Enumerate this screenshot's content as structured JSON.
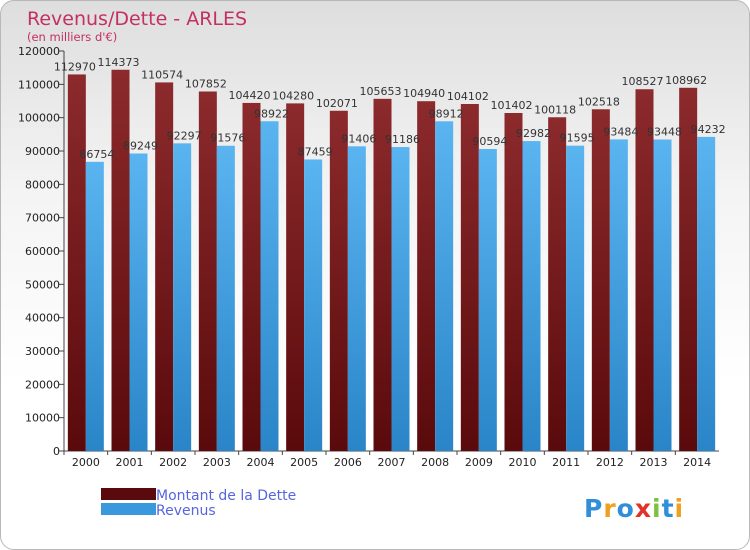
{
  "chart_data": {
    "type": "bar",
    "title": "Revenus/Dette - ARLES",
    "subtitle": "(en milliers d'€)",
    "categories": [
      "2000",
      "2001",
      "2002",
      "2003",
      "2004",
      "2005",
      "2006",
      "2007",
      "2008",
      "2009",
      "2010",
      "2011",
      "2012",
      "2013",
      "2014"
    ],
    "series": [
      {
        "name": "Montant de la Dette",
        "color": "#7a1f22",
        "values": [
          112970,
          114373,
          110574,
          107852,
          104420,
          104280,
          102071,
          105653,
          104940,
          104102,
          101402,
          100118,
          102518,
          108527,
          108962
        ]
      },
      {
        "name": "Revenus",
        "color": "#4da6e8",
        "values": [
          86754,
          89249,
          92297,
          91576,
          98922,
          87459,
          91406,
          91186,
          98912,
          90594,
          92982,
          91595,
          93484,
          93448,
          94232
        ]
      }
    ],
    "ylim": [
      0,
      120000
    ],
    "yticks": [
      0,
      10000,
      20000,
      30000,
      40000,
      50000,
      60000,
      70000,
      80000,
      90000,
      100000,
      110000,
      120000
    ],
    "grid": false,
    "legend_position": "bottom-left"
  },
  "logo": {
    "text": "Proxiti"
  }
}
